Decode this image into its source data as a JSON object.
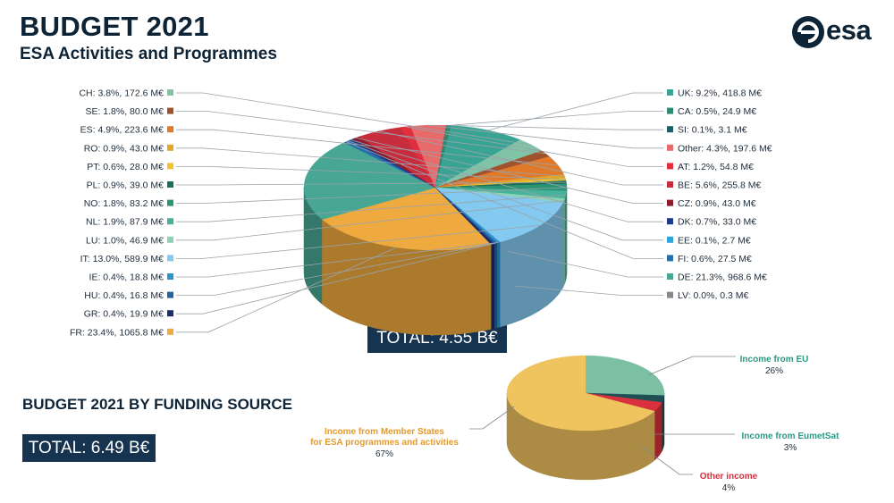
{
  "header": {
    "title": "BUDGET 2021",
    "subtitle": "ESA Activities and Programmes",
    "logo_text": "esa",
    "logo_icon": "esa-logo-icon"
  },
  "totals": {
    "activities": "TOTAL: 4.55 B€",
    "funding": "TOTAL: 6.49 B€"
  },
  "funding_section_title": "BUDGET 2021 BY FUNDING SOURCE",
  "chart_data": [
    {
      "type": "pie",
      "title": "",
      "unit": "M€",
      "slices": [
        {
          "label": "CH: 3.8%, 172.6 M€",
          "name": "CH",
          "percent": 3.8,
          "value": 172.6,
          "color": "#80c3a6",
          "side": "left"
        },
        {
          "label": "SE: 1.8%, 80.0 M€",
          "name": "SE",
          "percent": 1.8,
          "value": 80.0,
          "color": "#a0522d",
          "side": "left"
        },
        {
          "label": "ES: 4.9%, 223.6 M€",
          "name": "ES",
          "percent": 4.9,
          "value": 223.6,
          "color": "#e07a2a",
          "side": "left"
        },
        {
          "label": "RO: 0.9%, 43.0 M€",
          "name": "RO",
          "percent": 0.9,
          "value": 43.0,
          "color": "#e5a526",
          "side": "left"
        },
        {
          "label": "PT: 0.6%, 28.0 M€",
          "name": "PT",
          "percent": 0.6,
          "value": 28.0,
          "color": "#f2c230",
          "side": "left"
        },
        {
          "label": "PL: 0.9%, 39.0 M€",
          "name": "PL",
          "percent": 0.9,
          "value": 39.0,
          "color": "#1d6e58",
          "side": "left"
        },
        {
          "label": "NO: 1.8%, 83.2 M€",
          "name": "NO",
          "percent": 1.8,
          "value": 83.2,
          "color": "#2b9475",
          "side": "left"
        },
        {
          "label": "NL: 1.9%, 87.9 M€",
          "name": "NL",
          "percent": 1.9,
          "value": 87.9,
          "color": "#47b39a",
          "side": "left"
        },
        {
          "label": "LU: 1.0%, 46.9 M€",
          "name": "LU",
          "percent": 1.0,
          "value": 46.9,
          "color": "#8ed1b4",
          "side": "left"
        },
        {
          "label": "IT: 13.0%, 589.9 M€",
          "name": "IT",
          "percent": 13.0,
          "value": 589.9,
          "color": "#84c9ef",
          "side": "left"
        },
        {
          "label": "IE: 0.4%, 18.8 M€",
          "name": "IE",
          "percent": 0.4,
          "value": 18.8,
          "color": "#2b94cf",
          "side": "left"
        },
        {
          "label": "HU: 0.4%, 16.8 M€",
          "name": "HU",
          "percent": 0.4,
          "value": 16.8,
          "color": "#2462a3",
          "side": "left"
        },
        {
          "label": "GR: 0.4%, 19.9 M€",
          "name": "GR",
          "percent": 0.4,
          "value": 19.9,
          "color": "#1b2d6b",
          "side": "left"
        },
        {
          "label": "FR: 23.4%, 1065.8 M€",
          "name": "FR",
          "percent": 23.4,
          "value": 1065.8,
          "color": "#eeaa3f",
          "side": "left"
        },
        {
          "label": "LV: 0.0%, 0.3 M€",
          "name": "LV",
          "percent": 0.0,
          "value": 0.3,
          "color": "#888888",
          "side": "right"
        },
        {
          "label": "DE: 21.3%, 968.6 M€",
          "name": "DE",
          "percent": 21.3,
          "value": 968.6,
          "color": "#47a694",
          "side": "right"
        },
        {
          "label": "FI: 0.6%, 27.5 M€",
          "name": "FI",
          "percent": 0.6,
          "value": 27.5,
          "color": "#2470ad",
          "side": "right"
        },
        {
          "label": "EE: 0.1%, 2.7 M€",
          "name": "EE",
          "percent": 0.1,
          "value": 2.7,
          "color": "#33a3de",
          "side": "right"
        },
        {
          "label": "DK: 0.7%, 33.0 M€",
          "name": "DK",
          "percent": 0.7,
          "value": 33.0,
          "color": "#1e3a8a",
          "side": "right"
        },
        {
          "label": "CZ: 0.9%, 43.0 M€",
          "name": "CZ",
          "percent": 0.9,
          "value": 43.0,
          "color": "#8c1c2c",
          "side": "right"
        },
        {
          "label": "BE: 5.6%, 255.8 M€",
          "name": "BE",
          "percent": 5.6,
          "value": 255.8,
          "color": "#c72d3d",
          "side": "right"
        },
        {
          "label": "AT: 1.2%, 54.8 M€",
          "name": "AT",
          "percent": 1.2,
          "value": 54.8,
          "color": "#e0303d",
          "side": "right"
        },
        {
          "label": "Other: 4.3%, 197.6 M€",
          "name": "Other",
          "percent": 4.3,
          "value": 197.6,
          "color": "#e86a6a",
          "side": "right"
        },
        {
          "label": "SI: 0.1%, 3.1 M€",
          "name": "SI",
          "percent": 0.1,
          "value": 3.1,
          "color": "#1f5e6b",
          "side": "right"
        },
        {
          "label": "CA: 0.5%, 24.9 M€",
          "name": "CA",
          "percent": 0.5,
          "value": 24.9,
          "color": "#2e8b72",
          "side": "right"
        },
        {
          "label": "UK: 9.2%, 418.8 M€",
          "name": "UK",
          "percent": 9.2,
          "value": 418.8,
          "color": "#3aa494",
          "side": "right"
        }
      ]
    },
    {
      "type": "pie",
      "title": "BUDGET 2021 BY FUNDING SOURCE",
      "slices": [
        {
          "name": "Income from EU",
          "percent_label": "26%",
          "value": 26,
          "color": "#7cc0a3",
          "label_color": "#2a9a85"
        },
        {
          "name": "Income from EumetSat",
          "percent_label": "3%",
          "value": 3,
          "color": "#1f4e55",
          "label_color": "#2a9a85"
        },
        {
          "name": "Other income",
          "percent_label": "4%",
          "value": 4,
          "color": "#d8303c",
          "label_color": "#d8303c"
        },
        {
          "name": "Income from Member States for ESA programmes and activities",
          "name_lines": [
            "Income from Member States",
            "for ESA programmes and activities"
          ],
          "percent_label": "67%",
          "value": 67,
          "color": "#efc35e",
          "label_color": "#e59a2c"
        }
      ]
    }
  ]
}
